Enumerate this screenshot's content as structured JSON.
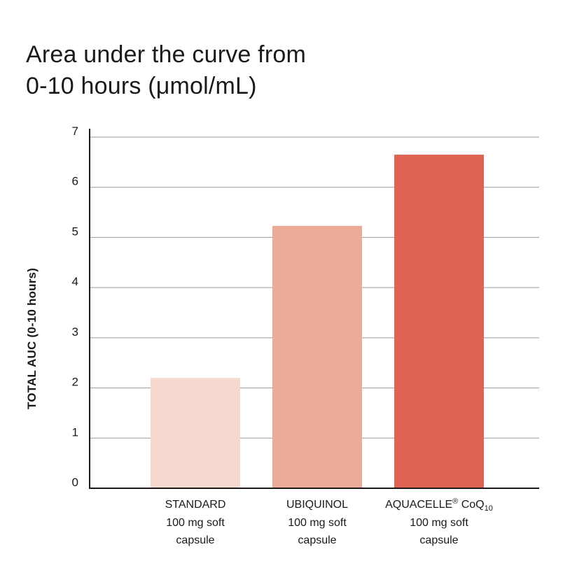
{
  "colors": {
    "standard": "#f7d8ce",
    "ubiquinol": "#ecab96",
    "aquacelle": "#df6353",
    "grid": "#9a9a9a",
    "axis": "#1a1a1a"
  },
  "chart_data": {
    "type": "bar",
    "title_lines": [
      "Area under the curve from",
      "0-10 hours (μmol/mL)"
    ],
    "ylabel": "TOTAL AUC (0-10 hours)",
    "xlabel": "",
    "ylim": [
      0,
      7
    ],
    "yticks": [
      "0",
      "1",
      "2",
      "3",
      "4",
      "5",
      "6",
      "7"
    ],
    "grid": true,
    "categories": [
      {
        "name": "STANDARD",
        "name_sup": "",
        "name_suffix": "",
        "name_sub": "",
        "line2": "100 mg soft",
        "line3": "capsule"
      },
      {
        "name": "UBIQUINOL",
        "name_sup": "",
        "name_suffix": "",
        "name_sub": "",
        "line2": "100 mg soft",
        "line3": "capsule"
      },
      {
        "name": "AQUACELLE",
        "name_sup": "®",
        "name_suffix": " CoQ",
        "name_sub": "10",
        "line2": "100 mg soft",
        "line3": "capsule"
      }
    ],
    "values": [
      2.2,
      5.23,
      6.65
    ],
    "bar_colors": [
      "#f7d8ce",
      "#ecab96",
      "#df6353"
    ]
  }
}
